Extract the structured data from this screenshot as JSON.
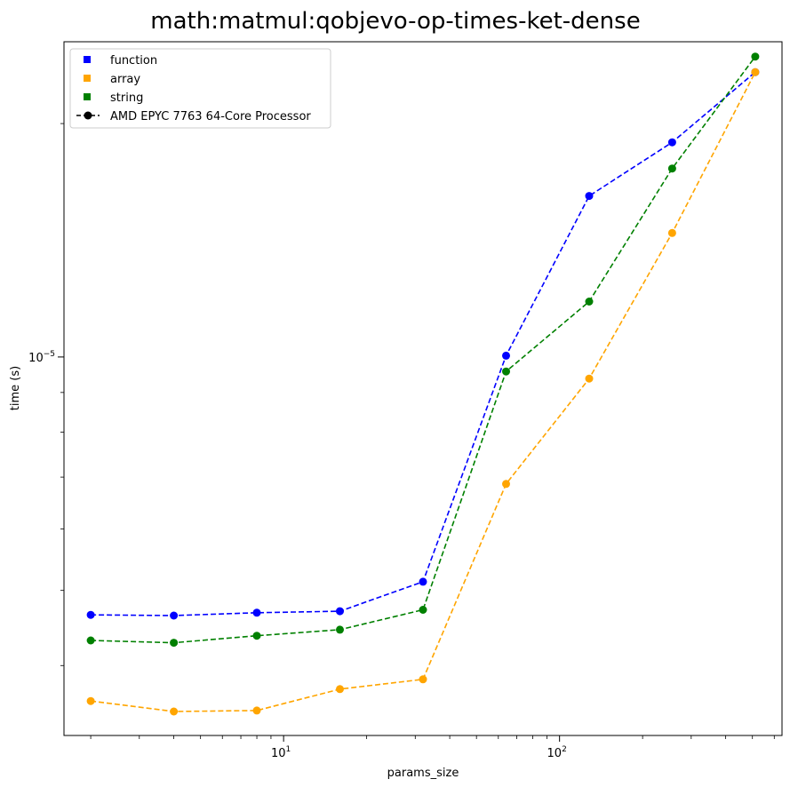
{
  "chart_data": {
    "type": "line",
    "title": "math:matmul:qobjevo-op-times-ket-dense",
    "xlabel": "params_size",
    "ylabel": "time (s)",
    "xscale": "log",
    "yscale": "log",
    "x": [
      2,
      4,
      8,
      16,
      32,
      64,
      128,
      256,
      512
    ],
    "xlim": [
      1.6,
      640
    ],
    "ylim": [
      3.25e-06,
      2.55e-05
    ],
    "x_tick_labels": [
      {
        "value": 10,
        "base": "10",
        "exp": "1"
      },
      {
        "value": 100,
        "base": "10",
        "exp": "2"
      }
    ],
    "y_tick_labels": [
      {
        "value": 1e-05,
        "base": "10",
        "exp": "−5"
      }
    ],
    "series": [
      {
        "name": "function",
        "color": "#0000ff",
        "values": [
          4.65e-06,
          4.64e-06,
          4.68e-06,
          4.7e-06,
          5.13e-06,
          1.004e-05,
          1.613e-05,
          1.892e-05,
          2.33e-05
        ]
      },
      {
        "name": "array",
        "color": "#ffa500",
        "values": [
          3.6e-06,
          3.49e-06,
          3.5e-06,
          3.73e-06,
          3.84e-06,
          6.86e-06,
          9.38e-06,
          1.445e-05,
          2.33e-05
        ]
      },
      {
        "name": "string",
        "color": "#008000",
        "values": [
          4.31e-06,
          4.28e-06,
          4.37e-06,
          4.45e-06,
          4.72e-06,
          9.58e-06,
          1.179e-05,
          1.75e-05,
          2.44e-05
        ]
      }
    ],
    "legend": {
      "position": "top-left",
      "entries": [
        "function",
        "array",
        "string"
      ],
      "machine_entry": "AMD EPYC 7763 64-Core Processor"
    },
    "grid": false,
    "line_style": "dashed",
    "marker": "circle"
  }
}
